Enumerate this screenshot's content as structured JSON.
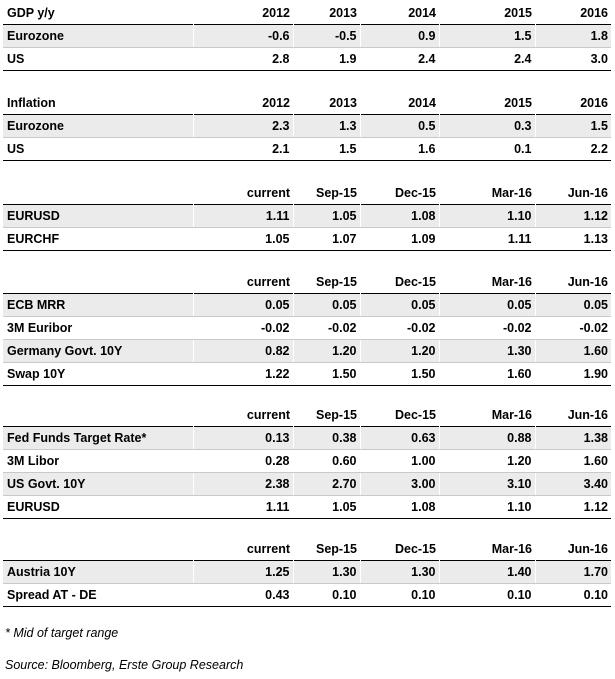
{
  "tables": [
    {
      "header": [
        "GDP y/y",
        "2012",
        "2013",
        "2014",
        "2015",
        "2016"
      ],
      "rows": [
        [
          "Eurozone",
          "-0.6",
          "-0.5",
          "0.9",
          "1.5",
          "1.8"
        ],
        [
          "US",
          "2.8",
          "1.9",
          "2.4",
          "2.4",
          "3.0"
        ]
      ]
    },
    {
      "header": [
        "Inflation",
        "2012",
        "2013",
        "2014",
        "2015",
        "2016"
      ],
      "rows": [
        [
          "Eurozone",
          "2.3",
          "1.3",
          "0.5",
          "0.3",
          "1.5"
        ],
        [
          "US",
          "2.1",
          "1.5",
          "1.6",
          "0.1",
          "2.2"
        ]
      ]
    },
    {
      "header": [
        "",
        "current",
        "Sep-15",
        "Dec-15",
        "Mar-16",
        "Jun-16"
      ],
      "rows": [
        [
          "EURUSD",
          "1.11",
          "1.05",
          "1.08",
          "1.10",
          "1.12"
        ],
        [
          "EURCHF",
          "1.05",
          "1.07",
          "1.09",
          "1.11",
          "1.13"
        ]
      ]
    },
    {
      "header": [
        "",
        "current",
        "Sep-15",
        "Dec-15",
        "Mar-16",
        "Jun-16"
      ],
      "rows": [
        [
          "ECB MRR",
          "0.05",
          "0.05",
          "0.05",
          "0.05",
          "0.05"
        ],
        [
          "3M Euribor",
          "-0.02",
          "-0.02",
          "-0.02",
          "-0.02",
          "-0.02"
        ],
        [
          "Germany Govt. 10Y",
          "0.82",
          "1.20",
          "1.20",
          "1.30",
          "1.60"
        ],
        [
          "Swap 10Y",
          "1.22",
          "1.50",
          "1.50",
          "1.60",
          "1.90"
        ]
      ]
    },
    {
      "header": [
        "",
        "current",
        "Sep-15",
        "Dec-15",
        "Mar-16",
        "Jun-16"
      ],
      "rows": [
        [
          "Fed Funds Target Rate*",
          "0.13",
          "0.38",
          "0.63",
          "0.88",
          "1.38"
        ],
        [
          "3M Libor",
          "0.28",
          "0.60",
          "1.00",
          "1.20",
          "1.60"
        ],
        [
          "US Govt. 10Y",
          "2.38",
          "2.70",
          "3.00",
          "3.10",
          "3.40"
        ],
        [
          "EURUSD",
          "1.11",
          "1.05",
          "1.08",
          "1.10",
          "1.12"
        ]
      ]
    },
    {
      "header": [
        "",
        "current",
        "Sep-15",
        "Dec-15",
        "Mar-16",
        "Jun-16"
      ],
      "rows": [
        [
          "Austria 10Y",
          "1.25",
          "1.30",
          "1.30",
          "1.40",
          "1.70"
        ],
        [
          "Spread AT - DE",
          "0.43",
          "0.10",
          "0.10",
          "0.10",
          "0.10"
        ]
      ]
    }
  ],
  "footnote": "* Mid of target range",
  "source": "Source: Bloomberg, Erste Group Research"
}
